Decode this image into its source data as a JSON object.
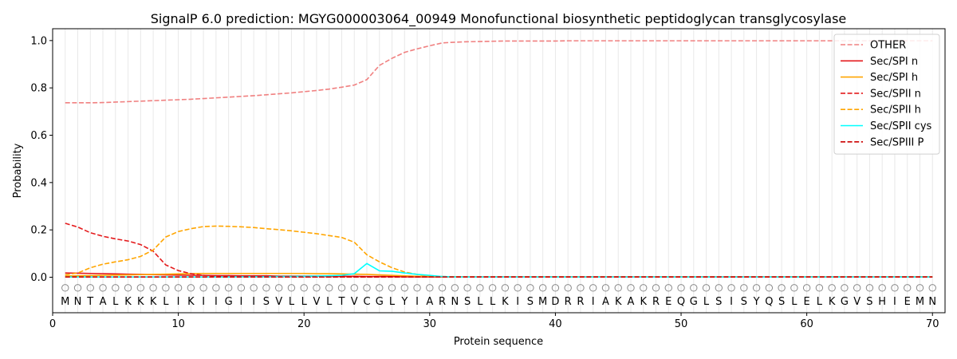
{
  "chart_data": {
    "type": "line",
    "title": "SignalP 6.0 prediction: MGYG000003064_00949 Monofunctional biosynthetic peptidoglycan transglycosylase",
    "xlabel": "Protein sequence",
    "ylabel": "Probability",
    "xlim": [
      0,
      71
    ],
    "ylim": [
      -0.15,
      1.05
    ],
    "xticks": [
      0,
      10,
      20,
      30,
      40,
      50,
      60,
      70
    ],
    "yticks": [
      0.0,
      0.2,
      0.4,
      0.6,
      0.8,
      1.0
    ],
    "ytick_labels": [
      "0.0",
      "0.2",
      "0.4",
      "0.6",
      "0.8",
      "1.0"
    ],
    "sequence": [
      "M",
      "N",
      "T",
      "A",
      "L",
      "K",
      "K",
      "K",
      "L",
      "I",
      "K",
      "I",
      "I",
      "G",
      "I",
      "I",
      "S",
      "V",
      "L",
      "L",
      "V",
      "L",
      "T",
      "V",
      "C",
      "G",
      "L",
      "Y",
      "I",
      "A",
      "R",
      "N",
      "S",
      "L",
      "L",
      "K",
      "I",
      "S",
      "M",
      "D",
      "R",
      "R",
      "I",
      "A",
      "K",
      "A",
      "K",
      "R",
      "E",
      "Q",
      "G",
      "L",
      "S",
      "I",
      "S",
      "Y",
      "Q",
      "S",
      "L",
      "E",
      "L",
      "K",
      "G",
      "V",
      "S",
      "H",
      "I",
      "E",
      "M",
      "N"
    ],
    "region_marker": "O",
    "legend_position": "top-right",
    "series": [
      {
        "name": "OTHER",
        "color": "#f08080",
        "dash": "dashed",
        "values": [
          0.737,
          0.737,
          0.737,
          0.738,
          0.74,
          0.742,
          0.744,
          0.746,
          0.748,
          0.75,
          0.752,
          0.755,
          0.758,
          0.761,
          0.764,
          0.767,
          0.771,
          0.775,
          0.779,
          0.784,
          0.789,
          0.795,
          0.803,
          0.812,
          0.835,
          0.895,
          0.925,
          0.95,
          0.965,
          0.978,
          0.99,
          0.993,
          0.995,
          0.996,
          0.997,
          0.998,
          0.998,
          0.998,
          0.998,
          0.998,
          0.999,
          0.999,
          0.999,
          0.999,
          0.999,
          0.999,
          0.999,
          0.999,
          0.999,
          0.999,
          0.999,
          0.999,
          0.999,
          0.999,
          0.999,
          0.999,
          0.999,
          0.999,
          0.999,
          0.999,
          0.999,
          0.999,
          0.999,
          0.999,
          0.999,
          0.999,
          0.999,
          0.999,
          0.999,
          0.999
        ]
      },
      {
        "name": "Sec/SPI n",
        "color": "#e41a1c",
        "dash": "solid",
        "values": [
          0.018,
          0.017,
          0.016,
          0.015,
          0.014,
          0.013,
          0.012,
          0.011,
          0.01,
          0.009,
          0.008,
          0.008,
          0.007,
          0.007,
          0.006,
          0.006,
          0.006,
          0.005,
          0.005,
          0.005,
          0.005,
          0.004,
          0.004,
          0.004,
          0.003,
          0.003,
          0.003,
          0.002,
          0.002,
          0.001,
          0.001,
          0.001,
          0.001,
          0.001,
          0.001,
          0.001,
          0.001,
          0.001,
          0.001,
          0.001,
          0.001,
          0.001,
          0.001,
          0.001,
          0.001,
          0.001,
          0.001,
          0.001,
          0.001,
          0.001,
          0.001,
          0.001,
          0.001,
          0.001,
          0.001,
          0.001,
          0.001,
          0.001,
          0.001,
          0.001,
          0.001,
          0.001,
          0.001,
          0.001,
          0.001,
          0.001,
          0.001,
          0.001,
          0.001,
          0.001
        ]
      },
      {
        "name": "Sec/SPI h",
        "color": "#ffa500",
        "dash": "solid",
        "values": [
          0.005,
          0.006,
          0.007,
          0.008,
          0.009,
          0.01,
          0.011,
          0.012,
          0.013,
          0.014,
          0.015,
          0.016,
          0.016,
          0.016,
          0.016,
          0.016,
          0.016,
          0.016,
          0.016,
          0.016,
          0.015,
          0.015,
          0.014,
          0.013,
          0.012,
          0.01,
          0.008,
          0.006,
          0.004,
          0.003,
          0.002,
          0.001,
          0.001,
          0.001,
          0.001,
          0.001,
          0.001,
          0.001,
          0.001,
          0.001,
          0.001,
          0.001,
          0.001,
          0.001,
          0.001,
          0.001,
          0.001,
          0.001,
          0.001,
          0.001,
          0.001,
          0.001,
          0.001,
          0.001,
          0.001,
          0.001,
          0.001,
          0.001,
          0.001,
          0.001,
          0.001,
          0.001,
          0.001,
          0.001,
          0.001,
          0.001,
          0.001,
          0.001,
          0.001,
          0.001
        ]
      },
      {
        "name": "Sec/SPII n",
        "color": "#e41a1c",
        "dash": "dashed",
        "values": [
          0.228,
          0.212,
          0.188,
          0.173,
          0.162,
          0.153,
          0.138,
          0.11,
          0.052,
          0.028,
          0.015,
          0.008,
          0.004,
          0.002,
          0.001,
          0.001,
          0.001,
          0.001,
          0.001,
          0.001,
          0.001,
          0.001,
          0.001,
          0.001,
          0.001,
          0.001,
          0.001,
          0.001,
          0.001,
          0.001,
          0.001,
          0.001,
          0.001,
          0.001,
          0.001,
          0.001,
          0.001,
          0.001,
          0.001,
          0.001,
          0.001,
          0.001,
          0.001,
          0.001,
          0.001,
          0.001,
          0.001,
          0.001,
          0.001,
          0.001,
          0.001,
          0.001,
          0.001,
          0.001,
          0.001,
          0.001,
          0.001,
          0.001,
          0.001,
          0.001,
          0.001,
          0.001,
          0.001,
          0.001,
          0.001,
          0.001,
          0.001,
          0.001,
          0.001,
          0.001
        ]
      },
      {
        "name": "Sec/SPII h",
        "color": "#ffa500",
        "dash": "dashed",
        "values": [
          0.01,
          0.018,
          0.04,
          0.055,
          0.065,
          0.074,
          0.088,
          0.115,
          0.17,
          0.193,
          0.205,
          0.214,
          0.216,
          0.215,
          0.213,
          0.21,
          0.205,
          0.201,
          0.196,
          0.19,
          0.184,
          0.176,
          0.168,
          0.148,
          0.095,
          0.065,
          0.04,
          0.022,
          0.012,
          0.006,
          0.003,
          0.002,
          0.001,
          0.001,
          0.001,
          0.001,
          0.001,
          0.001,
          0.001,
          0.001,
          0.001,
          0.001,
          0.001,
          0.001,
          0.001,
          0.001,
          0.001,
          0.001,
          0.001,
          0.001,
          0.001,
          0.001,
          0.001,
          0.001,
          0.001,
          0.001,
          0.001,
          0.001,
          0.001,
          0.001,
          0.001,
          0.001,
          0.001,
          0.001,
          0.001,
          0.001,
          0.001,
          0.001,
          0.001,
          0.001
        ]
      },
      {
        "name": "Sec/SPII cys",
        "color": "#00ffff",
        "dash": "solid",
        "values": [
          0.001,
          0.001,
          0.001,
          0.001,
          0.001,
          0.001,
          0.001,
          0.001,
          0.001,
          0.001,
          0.001,
          0.001,
          0.001,
          0.001,
          0.002,
          0.002,
          0.002,
          0.003,
          0.003,
          0.004,
          0.005,
          0.006,
          0.008,
          0.015,
          0.058,
          0.027,
          0.025,
          0.018,
          0.012,
          0.008,
          0.003,
          0.001,
          0.001,
          0.001,
          0.001,
          0.001,
          0.001,
          0.001,
          0.001,
          0.001,
          0.001,
          0.001,
          0.001,
          0.001,
          0.001,
          0.001,
          0.001,
          0.001,
          0.001,
          0.001,
          0.001,
          0.001,
          0.001,
          0.001,
          0.001,
          0.001,
          0.001,
          0.001,
          0.001,
          0.001,
          0.001,
          0.001,
          0.001,
          0.001,
          0.001,
          0.001,
          0.001,
          0.001,
          0.001,
          0.001
        ]
      },
      {
        "name": "Sec/SPIII P",
        "color": "#cc0000",
        "dash": "dashed",
        "values": [
          0.001,
          0.001,
          0.001,
          0.001,
          0.001,
          0.001,
          0.001,
          0.001,
          0.001,
          0.001,
          0.001,
          0.001,
          0.001,
          0.001,
          0.001,
          0.001,
          0.001,
          0.001,
          0.001,
          0.001,
          0.001,
          0.001,
          0.001,
          0.001,
          0.001,
          0.001,
          0.001,
          0.001,
          0.001,
          0.001,
          0.001,
          0.001,
          0.001,
          0.001,
          0.001,
          0.001,
          0.001,
          0.001,
          0.001,
          0.001,
          0.001,
          0.001,
          0.001,
          0.001,
          0.001,
          0.001,
          0.001,
          0.001,
          0.001,
          0.001,
          0.001,
          0.001,
          0.001,
          0.001,
          0.001,
          0.001,
          0.001,
          0.001,
          0.001,
          0.001,
          0.001,
          0.001,
          0.001,
          0.001,
          0.001,
          0.001,
          0.001,
          0.001,
          0.001,
          0.001
        ]
      }
    ]
  }
}
